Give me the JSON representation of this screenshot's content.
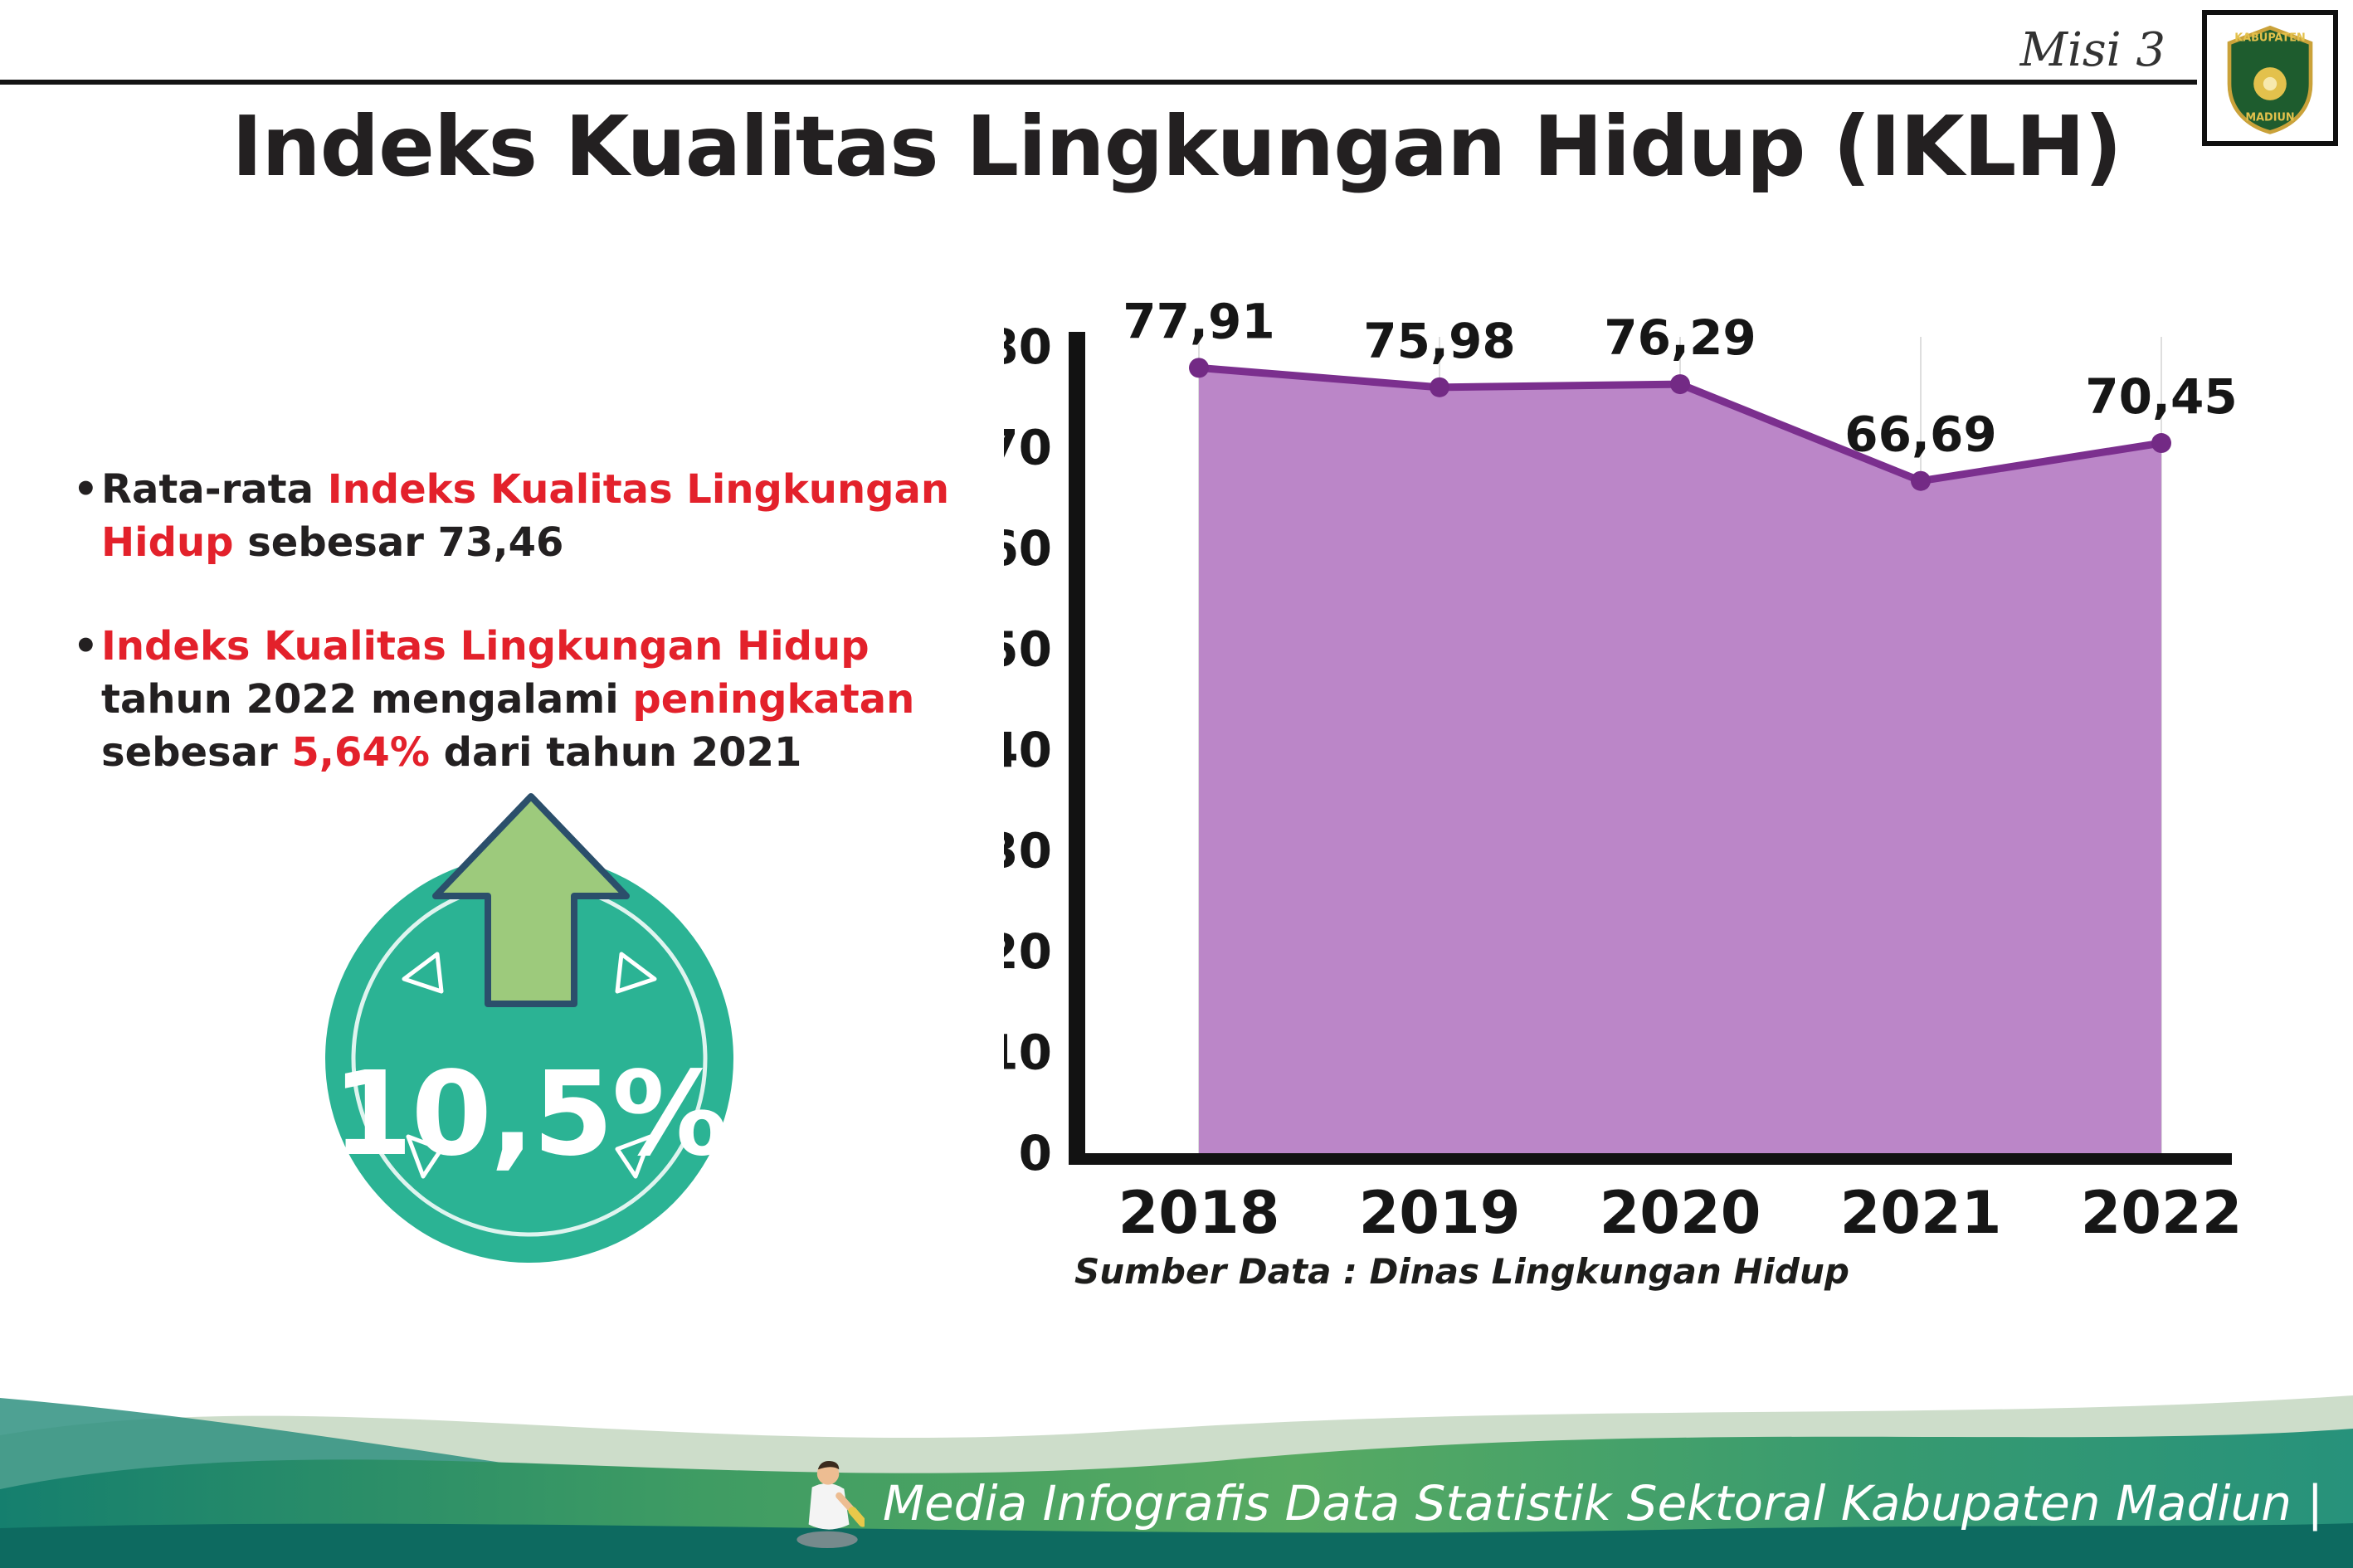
{
  "header": {
    "misi_label": "Misi 3",
    "title": "Indeks Kualitas Lingkungan Hidup (IKLH)",
    "logo": {
      "line1": "KABUPATEN",
      "line2": "MADIUN"
    }
  },
  "bullet_glyph": "•",
  "bullets": [
    {
      "segments": [
        {
          "text": "Rata-rata ",
          "red": false
        },
        {
          "text": "Indeks Kualitas Lingkungan Hidup",
          "red": true
        },
        {
          "text": " sebesar 73,46",
          "red": false
        }
      ]
    },
    {
      "segments": [
        {
          "text": "Indeks Kualitas Lingkungan Hidup",
          "red": true
        },
        {
          "text": " tahun 2022 mengalami ",
          "red": false
        },
        {
          "text": "peningkatan",
          "red": true
        },
        {
          "text": " sebesar ",
          "red": false
        },
        {
          "text": "5,64%",
          "red": true
        },
        {
          "text": " dari tahun 2021",
          "red": false
        }
      ]
    }
  ],
  "badge": {
    "value": "10,5%"
  },
  "chart_data": {
    "type": "area",
    "title": "Indeks Kualitas Lingkungan Hidup (IKLH)",
    "categories": [
      "2018",
      "2019",
      "2020",
      "2021",
      "2022"
    ],
    "values": [
      77.91,
      75.98,
      76.29,
      66.69,
      70.45
    ],
    "value_labels": [
      "77,91",
      "75,98",
      "76,29",
      "66,69",
      "70,45"
    ],
    "xlabel": "",
    "ylabel": "",
    "ylim": [
      0,
      80
    ],
    "ytick_step": 10,
    "grid": "vertical-light",
    "legend": "none",
    "line_color": "#7b2f8e",
    "marker_color": "#732a85",
    "fill_color": "#bb86c8",
    "source_note": "Sumber Data : Dinas Lingkungan Hidup"
  },
  "footer": {
    "credit": "Media Infografis Data Statistik Sektoral Kabupaten Madiun |"
  },
  "colors": {
    "accent_red": "#e3212b",
    "badge_teal": "#2bb394",
    "arrow_green": "#9dca7c",
    "text_dark": "#232021"
  }
}
